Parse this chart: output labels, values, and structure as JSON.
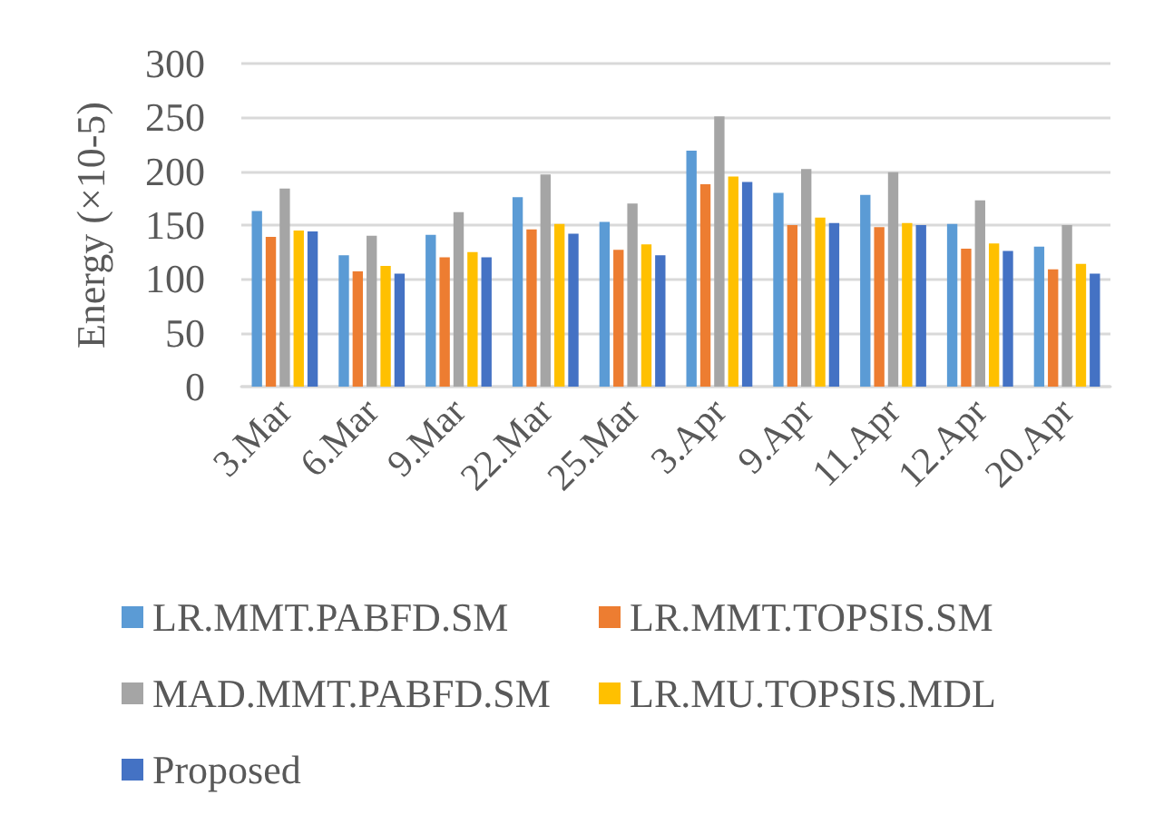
{
  "chart_data": {
    "type": "bar",
    "ylabel": "Energy (×10-5)",
    "categories": [
      "3.Mar",
      "6.Mar",
      "9.Mar",
      "22.Mar",
      "25.Mar",
      "3.Apr",
      "9.Apr",
      "11.Apr",
      "12.Apr",
      "20.Apr"
    ],
    "series": [
      {
        "name": "LR.MMT.PABFD.SM",
        "color": "#5b9bd5",
        "values": [
          163,
          122,
          141,
          176,
          153,
          219,
          180,
          178,
          151,
          130
        ]
      },
      {
        "name": "LR.MMT.TOPSIS.SM",
        "color": "#ed7d31",
        "values": [
          139,
          107,
          120,
          146,
          127,
          188,
          150,
          148,
          128,
          109
        ]
      },
      {
        "name": "MAD.MMT.PABFD.SM",
        "color": "#a5a5a5",
        "values": [
          184,
          140,
          162,
          197,
          170,
          251,
          202,
          199,
          173,
          150
        ]
      },
      {
        "name": "LR.MU.TOPSIS.MDL",
        "color": "#ffc000",
        "values": [
          145,
          112,
          125,
          151,
          132,
          195,
          157,
          152,
          133,
          114
        ]
      },
      {
        "name": "Proposed",
        "color": "#4472c4",
        "values": [
          144,
          105,
          120,
          142,
          122,
          190,
          152,
          150,
          126,
          105
        ]
      }
    ],
    "ylim": [
      0,
      300
    ],
    "yticks": [
      0,
      50,
      100,
      150,
      200,
      250,
      300
    ],
    "grid": "y",
    "legend": "bottom"
  }
}
